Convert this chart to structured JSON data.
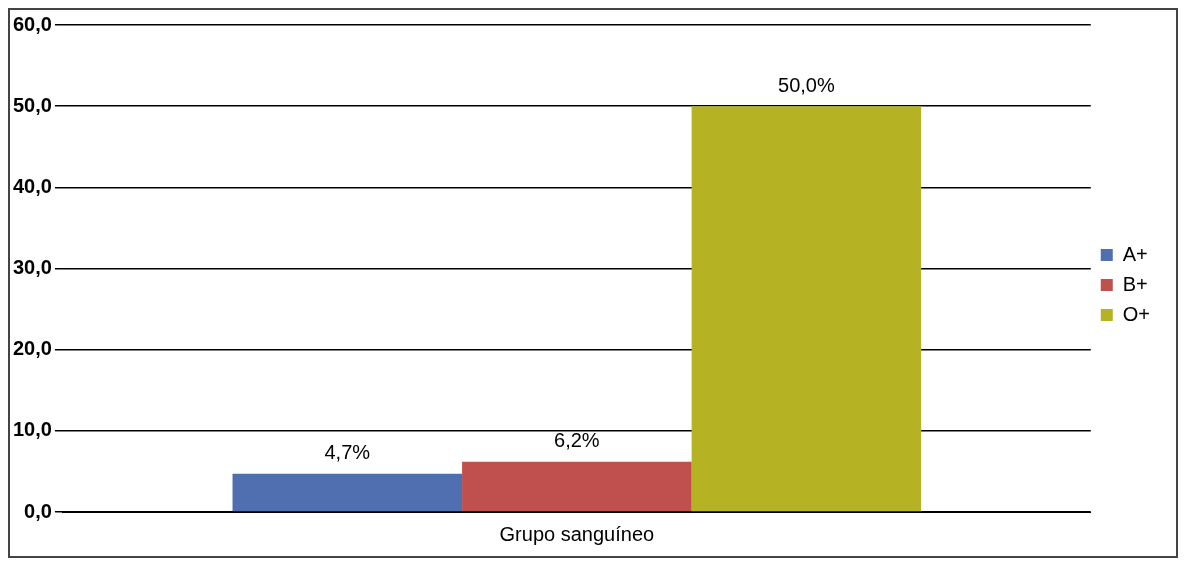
{
  "chart_data": {
    "type": "bar",
    "categories": [
      "Grupo sanguíneo"
    ],
    "series": [
      {
        "name": "A+",
        "color": "#4f6fb0",
        "values": [
          4.7
        ],
        "value_labels": [
          "4,7%"
        ]
      },
      {
        "name": "B+",
        "color": "#c0504d",
        "values": [
          6.2
        ],
        "value_labels": [
          "6,2%"
        ]
      },
      {
        "name": "O+",
        "color": "#b5b324",
        "values": [
          50.0
        ],
        "value_labels": [
          "50,0%"
        ]
      }
    ],
    "ylim": [
      0,
      60
    ],
    "yticks": [
      {
        "value": 0,
        "label": "0,0"
      },
      {
        "value": 10,
        "label": "10,0"
      },
      {
        "value": 20,
        "label": "20,0"
      },
      {
        "value": 30,
        "label": "30,0"
      },
      {
        "value": 40,
        "label": "40,0"
      },
      {
        "value": 50,
        "label": "50,0"
      },
      {
        "value": 60,
        "label": "60,0"
      }
    ],
    "grid": "y",
    "legend": "right"
  }
}
